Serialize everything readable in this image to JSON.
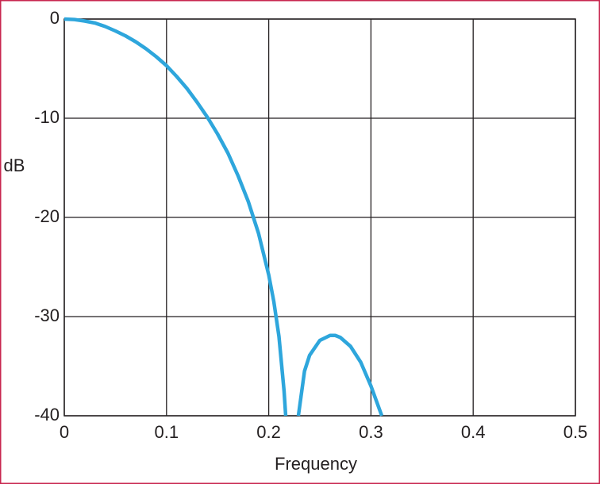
{
  "chart_data": {
    "type": "line",
    "xlabel": "Frequency",
    "ylabel": "dB",
    "x": [
      0,
      0.01,
      0.02,
      0.03,
      0.04,
      0.05,
      0.06,
      0.07,
      0.08,
      0.09,
      0.1,
      0.11,
      0.12,
      0.13,
      0.14,
      0.15,
      0.16,
      0.17,
      0.18,
      0.19,
      0.2,
      0.205,
      0.21,
      0.215,
      0.2166,
      0.222,
      0.229,
      0.235,
      0.24,
      0.25,
      0.26,
      0.265,
      0.27,
      0.28,
      0.29,
      0.3,
      0.3106
    ],
    "series": [
      {
        "color": "#2ea6dc",
        "values": [
          0,
          -0.05,
          -0.2,
          -0.4,
          -0.75,
          -1.2,
          -1.7,
          -2.3,
          -3.0,
          -3.8,
          -4.7,
          -5.8,
          -7.0,
          -8.4,
          -9.9,
          -11.6,
          -13.5,
          -15.8,
          -18.4,
          -21.6,
          -25.8,
          -28.5,
          -32,
          -37.5,
          -40,
          null,
          -40,
          -35.5,
          -33.9,
          -32.4,
          -31.9,
          -31.9,
          -32.1,
          -33,
          -34.6,
          -37,
          -40
        ]
      }
    ],
    "xlim": [
      0,
      0.5
    ],
    "xticks": [
      0,
      0.1,
      0.2,
      0.3,
      0.4,
      0.5
    ],
    "ylim": [
      -40,
      0
    ],
    "yticks": [
      -40,
      -30,
      -20,
      -10,
      0
    ],
    "grid": true
  }
}
